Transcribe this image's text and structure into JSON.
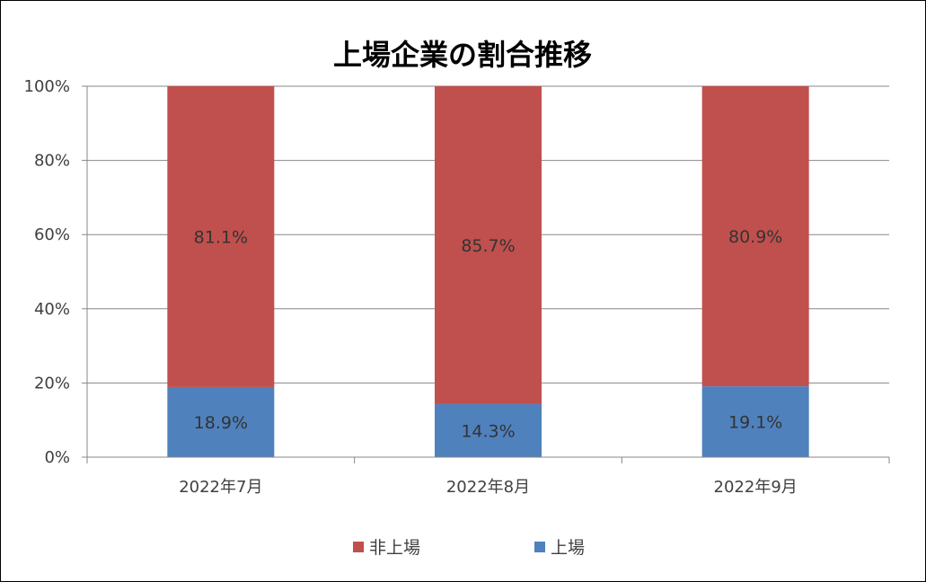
{
  "chart_data": {
    "type": "bar",
    "stacked": true,
    "title": "上場企業の割合推移",
    "categories": [
      "2022年7月",
      "2022年8月",
      "2022年9月"
    ],
    "series": [
      {
        "name": "上場",
        "color": "#4f81bd",
        "values": [
          18.9,
          14.3,
          19.1
        ],
        "labels": [
          "18.9%",
          "14.3%",
          "19.1%"
        ]
      },
      {
        "name": "非上場",
        "color": "#c0504d",
        "values": [
          81.1,
          85.7,
          80.9
        ],
        "labels": [
          "81.1%",
          "85.7%",
          "80.9%"
        ]
      }
    ],
    "ylim": [
      0,
      100
    ],
    "y_ticks": [
      0,
      20,
      40,
      60,
      80,
      100
    ],
    "y_tick_labels": [
      "0%",
      "20%",
      "40%",
      "60%",
      "80%",
      "100%"
    ],
    "grid": true,
    "legend_position": "bottom",
    "legend_order": [
      "非上場",
      "上場"
    ]
  }
}
